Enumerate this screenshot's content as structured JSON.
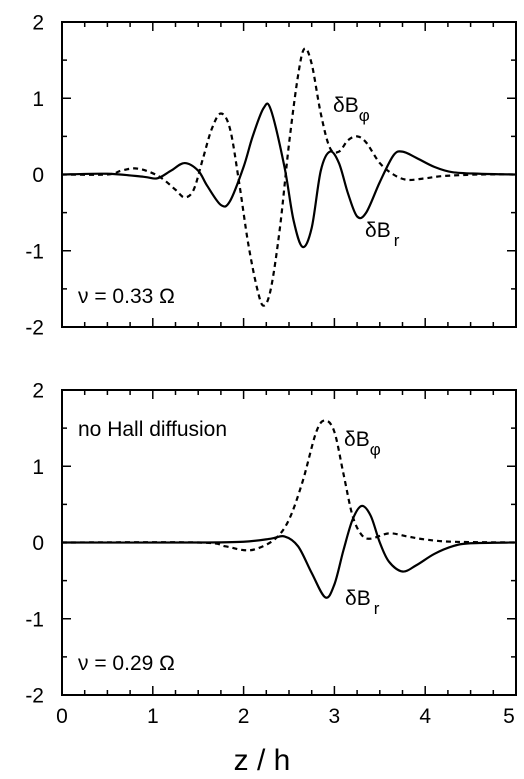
{
  "chart_data": [
    {
      "type": "line",
      "xlim": [
        0,
        5
      ],
      "ylim": [
        -2,
        2
      ],
      "x_ticks": [
        "0",
        "1",
        "2",
        "3",
        "4",
        "5"
      ],
      "y_ticks": [
        "2",
        "1",
        "0",
        "-1",
        "-2"
      ],
      "show_x_tick_labels": false,
      "grid": false,
      "annotation": "ν = 0.33 Ω",
      "series": [
        {
          "name": "δB_r",
          "label_main": "δB",
          "label_sub": "r",
          "style": "solid",
          "points": [
            [
              0,
              0
            ],
            [
              0.5,
              0.01
            ],
            [
              0.9,
              -0.03
            ],
            [
              1.05,
              -0.05
            ],
            [
              1.2,
              0.05
            ],
            [
              1.35,
              0.15
            ],
            [
              1.5,
              0.05
            ],
            [
              1.6,
              -0.15
            ],
            [
              1.75,
              -0.4
            ],
            [
              1.85,
              -0.35
            ],
            [
              2.0,
              0.1
            ],
            [
              2.1,
              0.5
            ],
            [
              2.22,
              0.87
            ],
            [
              2.3,
              0.85
            ],
            [
              2.45,
              0.1
            ],
            [
              2.55,
              -0.6
            ],
            [
              2.65,
              -0.95
            ],
            [
              2.75,
              -0.7
            ],
            [
              2.85,
              0.05
            ],
            [
              2.95,
              0.3
            ],
            [
              3.05,
              0.15
            ],
            [
              3.15,
              -0.25
            ],
            [
              3.25,
              -0.55
            ],
            [
              3.35,
              -0.5
            ],
            [
              3.5,
              -0.1
            ],
            [
              3.65,
              0.25
            ],
            [
              3.75,
              0.3
            ],
            [
              3.9,
              0.22
            ],
            [
              4.1,
              0.1
            ],
            [
              4.3,
              0.03
            ],
            [
              4.6,
              0.01
            ],
            [
              5,
              0
            ]
          ]
        },
        {
          "name": "δB_φ",
          "label_main": "δB",
          "label_sub": "φ",
          "style": "dashed",
          "points": [
            [
              0,
              0
            ],
            [
              0.5,
              0
            ],
            [
              0.65,
              0.05
            ],
            [
              0.8,
              0.08
            ],
            [
              0.95,
              0.04
            ],
            [
              1.1,
              -0.05
            ],
            [
              1.25,
              -0.2
            ],
            [
              1.35,
              -0.3
            ],
            [
              1.45,
              -0.2
            ],
            [
              1.55,
              0.2
            ],
            [
              1.65,
              0.6
            ],
            [
              1.75,
              0.8
            ],
            [
              1.85,
              0.6
            ],
            [
              1.95,
              -0.1
            ],
            [
              2.05,
              -0.9
            ],
            [
              2.15,
              -1.5
            ],
            [
              2.22,
              -1.72
            ],
            [
              2.3,
              -1.5
            ],
            [
              2.4,
              -0.7
            ],
            [
              2.5,
              0.4
            ],
            [
              2.6,
              1.3
            ],
            [
              2.67,
              1.65
            ],
            [
              2.75,
              1.45
            ],
            [
              2.85,
              0.8
            ],
            [
              2.95,
              0.35
            ],
            [
              3.05,
              0.3
            ],
            [
              3.15,
              0.45
            ],
            [
              3.25,
              0.5
            ],
            [
              3.35,
              0.42
            ],
            [
              3.5,
              0.15
            ],
            [
              3.65,
              0.0
            ],
            [
              3.8,
              -0.07
            ],
            [
              4.0,
              -0.05
            ],
            [
              4.2,
              -0.02
            ],
            [
              4.6,
              0
            ],
            [
              5,
              0
            ]
          ]
        }
      ]
    },
    {
      "type": "line",
      "xlim": [
        0,
        5
      ],
      "ylim": [
        -2,
        2
      ],
      "x_ticks": [
        "0",
        "1",
        "2",
        "3",
        "4",
        "5"
      ],
      "y_ticks": [
        "2",
        "1",
        "0",
        "-1",
        "-2"
      ],
      "show_x_tick_labels": true,
      "xlabel": "z / h",
      "grid": false,
      "annotation": "ν = 0.29 Ω",
      "note": "no Hall diffusion",
      "series": [
        {
          "name": "δB_r",
          "label_main": "δB",
          "label_sub": "r",
          "style": "solid",
          "points": [
            [
              0,
              0
            ],
            [
              1.5,
              0
            ],
            [
              2.0,
              0.01
            ],
            [
              2.3,
              0.05
            ],
            [
              2.45,
              0.08
            ],
            [
              2.6,
              -0.05
            ],
            [
              2.75,
              -0.4
            ],
            [
              2.9,
              -0.72
            ],
            [
              3.0,
              -0.55
            ],
            [
              3.1,
              -0.1
            ],
            [
              3.2,
              0.3
            ],
            [
              3.3,
              0.48
            ],
            [
              3.4,
              0.35
            ],
            [
              3.5,
              0.0
            ],
            [
              3.6,
              -0.25
            ],
            [
              3.75,
              -0.38
            ],
            [
              3.9,
              -0.3
            ],
            [
              4.1,
              -0.15
            ],
            [
              4.3,
              -0.05
            ],
            [
              4.5,
              -0.01
            ],
            [
              5,
              0
            ]
          ]
        },
        {
          "name": "δB_φ",
          "label_main": "δB",
          "label_sub": "φ",
          "style": "dashed",
          "points": [
            [
              0,
              0
            ],
            [
              1.5,
              0
            ],
            [
              1.8,
              -0.05
            ],
            [
              2.0,
              -0.1
            ],
            [
              2.15,
              -0.08
            ],
            [
              2.35,
              0.05
            ],
            [
              2.5,
              0.3
            ],
            [
              2.65,
              0.8
            ],
            [
              2.8,
              1.45
            ],
            [
              2.9,
              1.6
            ],
            [
              3.0,
              1.45
            ],
            [
              3.1,
              0.9
            ],
            [
              3.2,
              0.35
            ],
            [
              3.3,
              0.1
            ],
            [
              3.4,
              0.05
            ],
            [
              3.6,
              0.12
            ],
            [
              3.8,
              0.08
            ],
            [
              4.0,
              0.04
            ],
            [
              4.3,
              0.01
            ],
            [
              5,
              0
            ]
          ]
        }
      ]
    }
  ]
}
